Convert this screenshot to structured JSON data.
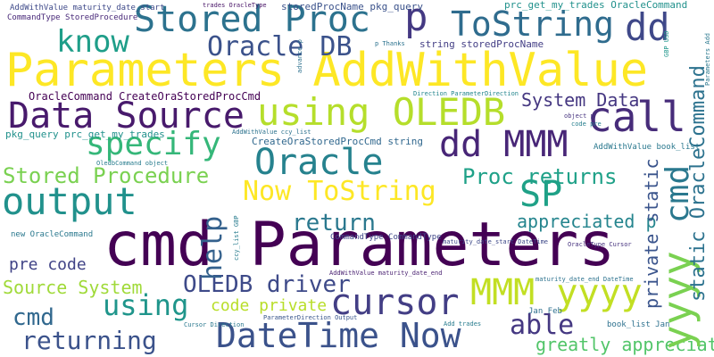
{
  "words": [
    {
      "id": "cmd-parameters",
      "text": "cmd Parameters",
      "color": "#440154",
      "vertical": false
    },
    {
      "id": "parameters-addwithvalue",
      "text": "Parameters AddWithValue",
      "color": "#fde725",
      "vertical": false
    },
    {
      "id": "datetime-now",
      "text": "DateTime Now",
      "color": "#3b528b",
      "vertical": false
    },
    {
      "id": "stored-proc",
      "text": "Stored Proc",
      "color": "#2c728e",
      "vertical": false
    },
    {
      "id": "p",
      "text": "p",
      "color": "#443983",
      "vertical": false
    },
    {
      "id": "tostring",
      "text": "ToString",
      "color": "#2f6c8e",
      "vertical": false
    },
    {
      "id": "dd-top",
      "text": "dd",
      "color": "#3f4889",
      "vertical": false
    },
    {
      "id": "know",
      "text": "know",
      "color": "#1f9e89",
      "vertical": false
    },
    {
      "id": "oracle-db",
      "text": "Oracle DB",
      "color": "#3b528b",
      "vertical": false
    },
    {
      "id": "data-source",
      "text": "Data Source",
      "color": "#481a6c",
      "vertical": false
    },
    {
      "id": "using-oledb",
      "text": "using OLEDB",
      "color": "#b5de2b",
      "vertical": false
    },
    {
      "id": "call",
      "text": "call",
      "color": "#472c7a",
      "vertical": false
    },
    {
      "id": "specify",
      "text": "specify",
      "color": "#35b779",
      "vertical": false
    },
    {
      "id": "dd-mmm",
      "text": "dd MMM",
      "color": "#482677",
      "vertical": false
    },
    {
      "id": "oracle",
      "text": "Oracle",
      "color": "#26828e",
      "vertical": false
    },
    {
      "id": "output",
      "text": "output",
      "color": "#21918c",
      "vertical": false
    },
    {
      "id": "now-tostring",
      "text": "Now ToString",
      "color": "#fde725",
      "vertical": false
    },
    {
      "id": "sp",
      "text": "SP",
      "color": "#1fa187",
      "vertical": false
    },
    {
      "id": "oledb-driver",
      "text": "OLEDB driver",
      "color": "#3e4a89",
      "vertical": false
    },
    {
      "id": "cursor",
      "text": "cursor",
      "color": "#433e85",
      "vertical": false
    },
    {
      "id": "mmm-yyyy",
      "text": "MMM yyyy",
      "color": "#c2df23",
      "vertical": false
    },
    {
      "id": "using-2",
      "text": "using",
      "color": "#1f958b",
      "vertical": false
    },
    {
      "id": "returning",
      "text": "returning",
      "color": "#3b528b",
      "vertical": false
    },
    {
      "id": "stored-procedure",
      "text": "Stored Procedure",
      "color": "#7ad151",
      "vertical": false
    },
    {
      "id": "proc-returns",
      "text": "Proc returns",
      "color": "#1fa188",
      "vertical": false
    },
    {
      "id": "return",
      "text": "return",
      "color": "#2a788e",
      "vertical": false
    },
    {
      "id": "system-data",
      "text": "System Data",
      "color": "#453781",
      "vertical": false
    },
    {
      "id": "appreciated-p",
      "text": "appreciated p",
      "color": "#25858e",
      "vertical": false
    },
    {
      "id": "able",
      "text": "able",
      "color": "#453882",
      "vertical": false
    },
    {
      "id": "greatly-appreciated",
      "text": "greatly appreciated",
      "color": "#52c569",
      "vertical": false
    },
    {
      "id": "source-system",
      "text": "Source System",
      "color": "#a0da39",
      "vertical": false
    },
    {
      "id": "cmd-small",
      "text": "cmd",
      "color": "#31688e",
      "vertical": false
    },
    {
      "id": "code-private",
      "text": "code private",
      "color": "#b8de29",
      "vertical": false
    },
    {
      "id": "pre-code",
      "text": "pre code",
      "color": "#414487",
      "vertical": false
    },
    {
      "id": "oraclecommand-createorastoredproccmd",
      "text": "OracleCommand CreateOraStoredProcCmd",
      "color": "#440154",
      "vertical": false
    },
    {
      "id": "pkg-query-prc-get-my-trades",
      "text": "pkg_query prc_get_my_trades",
      "color": "#21918c",
      "vertical": false
    },
    {
      "id": "createorastoredproccmd-string",
      "text": "CreateOraStoredProcCmd string",
      "color": "#31688e",
      "vertical": false
    },
    {
      "id": "string-storedprocname",
      "text": "string storedProcName",
      "color": "#433e85",
      "vertical": false
    },
    {
      "id": "storedprocname-pkg-query",
      "text": "storedProcName pkg_query",
      "color": "#3b528b",
      "vertical": false
    },
    {
      "id": "prc-get-my-trades-oraclecommand",
      "text": "prc_get_my_trades OracleCommand",
      "color": "#21918c",
      "vertical": false
    },
    {
      "id": "addwithvalue-maturity-date-start",
      "text": "AddWithValue maturity_date_start",
      "color": "#3e4989",
      "vertical": false
    },
    {
      "id": "commandtype-storedprocedure",
      "text": "CommandType StoredProcedure",
      "color": "#482878",
      "vertical": false
    },
    {
      "id": "trades-oracletype",
      "text": "trades OracleType",
      "color": "#481467",
      "vertical": false
    },
    {
      "id": "p-thanks",
      "text": "p Thanks",
      "color": "#2c728e",
      "vertical": false
    },
    {
      "id": "direction-parameterdirection",
      "text": "Direction ParameterDirection",
      "color": "#24868e",
      "vertical": false
    },
    {
      "id": "object-p",
      "text": "object p",
      "color": "#46337f",
      "vertical": false
    },
    {
      "id": "code-pre",
      "text": "code pre",
      "color": "#277f8e",
      "vertical": false
    },
    {
      "id": "addwithvalue-book-list",
      "text": "AddWithValue book_list",
      "color": "#2a788e",
      "vertical": false
    },
    {
      "id": "addwithvalue-ccy-list",
      "text": "AddWithValue ccy_list",
      "color": "#2c728e",
      "vertical": false
    },
    {
      "id": "oledbcommand-object",
      "text": "OledbCommand object",
      "color": "#287c8e",
      "vertical": false
    },
    {
      "id": "commandtype-commandtype",
      "text": "CommandType CommandType",
      "color": "#3f4788",
      "vertical": false
    },
    {
      "id": "maturity-date-start-datetime",
      "text": "maturity_date_start DateTime",
      "color": "#3e4989",
      "vertical": false
    },
    {
      "id": "new-oraclecommand",
      "text": "new OracleCommand",
      "color": "#2a788e",
      "vertical": false
    },
    {
      "id": "oracletype-cursor",
      "text": "OracleType Cursor",
      "color": "#46327e",
      "vertical": false
    },
    {
      "id": "addwithvalue-maturity-date-end",
      "text": "AddWithValue maturity_date_end",
      "color": "#481f70",
      "vertical": false
    },
    {
      "id": "maturity-date-end-datetime",
      "text": "maturity_date_end DateTime",
      "color": "#2c728e",
      "vertical": false
    },
    {
      "id": "cursor-direction",
      "text": "Cursor Direction",
      "color": "#2a788e",
      "vertical": false
    },
    {
      "id": "parameterdirection-output",
      "text": "ParameterDirection Output",
      "color": "#39568c",
      "vertical": false
    },
    {
      "id": "add-trades",
      "text": "Add trades",
      "color": "#287c8e",
      "vertical": false
    },
    {
      "id": "jan-feb",
      "text": "Jan Feb",
      "color": "#2e6f8e",
      "vertical": false
    },
    {
      "id": "book-list-jan",
      "text": "book_list Jan",
      "color": "#2d718e",
      "vertical": false
    },
    {
      "id": "yyyy",
      "text": "yyyy",
      "color": "#7ad151",
      "vertical": true
    },
    {
      "id": "cmd-vertical",
      "text": "cmd",
      "color": "#2a788e",
      "vertical": true
    },
    {
      "id": "static-oraclecommand",
      "text": "static OracleCommand",
      "color": "#2c728e",
      "vertical": true
    },
    {
      "id": "private-static",
      "text": "private static",
      "color": "#3a548c",
      "vertical": true
    },
    {
      "id": "help",
      "text": "help",
      "color": "#34618d",
      "vertical": true
    },
    {
      "id": "ccy-list-gbp",
      "text": "ccy_list GBP",
      "color": "#287c8e",
      "vertical": true
    },
    {
      "id": "gbp-usd",
      "text": "GBP USD",
      "color": "#1f968b",
      "vertical": true
    },
    {
      "id": "parameters-add",
      "text": "Parameters Add",
      "color": "#2a788e",
      "vertical": true
    },
    {
      "id": "advance-p",
      "text": "advance p",
      "color": "#2d718e",
      "vertical": true
    }
  ]
}
